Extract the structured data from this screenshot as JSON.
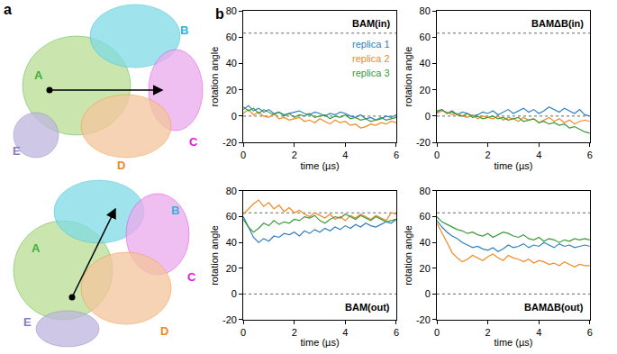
{
  "panel_a": {
    "label": "a",
    "structures": [
      {
        "labels": [
          {
            "text": "A",
            "color": "#3cb03c"
          },
          {
            "text": "B",
            "color": "#2fb5d8"
          },
          {
            "text": "C",
            "color": "#e020e0"
          },
          {
            "text": "D",
            "color": "#f08a24"
          },
          {
            "text": "E",
            "color": "#8a7ac0"
          }
        ]
      },
      {
        "labels": [
          {
            "text": "A",
            "color": "#3cb03c"
          },
          {
            "text": "B",
            "color": "#2fb5d8"
          },
          {
            "text": "C",
            "color": "#e020e0"
          },
          {
            "text": "D",
            "color": "#f08a24"
          },
          {
            "text": "E",
            "color": "#8a7ac0"
          }
        ]
      }
    ]
  },
  "panel_b_label": "b",
  "chart_data": [
    {
      "type": "line",
      "title": "BAM(in)",
      "x_label": "time (µs)",
      "y_label": "rotation angle",
      "xlim": [
        0,
        6
      ],
      "xticks": [
        0,
        2,
        4,
        6
      ],
      "ylim": [
        -20,
        80
      ],
      "yticks": [
        -20,
        0,
        20,
        40,
        60,
        80
      ],
      "hlines": [
        0,
        63
      ],
      "legend": "upper right",
      "line_style": "solid",
      "x": [
        0,
        0.2,
        0.4,
        0.6,
        0.8,
        1,
        1.2,
        1.4,
        1.6,
        1.8,
        2,
        2.2,
        2.4,
        2.6,
        2.8,
        3,
        3.2,
        3.4,
        3.6,
        3.8,
        4,
        4.2,
        4.4,
        4.6,
        4.8,
        5,
        5.2,
        5.4,
        5.6,
        5.8,
        6
      ],
      "series": [
        {
          "name": "replica 1",
          "color": "#2f7fc1",
          "values": [
            5,
            8,
            4,
            6,
            3,
            5,
            2,
            3,
            1,
            2,
            3,
            4,
            2,
            1,
            3,
            2,
            0,
            2,
            1,
            3,
            2,
            0,
            -1,
            1,
            -2,
            -1,
            -3,
            -2,
            0,
            -1,
            1
          ]
        },
        {
          "name": "replica 2",
          "color": "#f08a24",
          "values": [
            2,
            5,
            1,
            3,
            0,
            -1,
            2,
            -2,
            -1,
            -3,
            -2,
            -1,
            -4,
            -3,
            -5,
            -2,
            -4,
            -6,
            -3,
            -5,
            -4,
            -7,
            -6,
            -9,
            -8,
            -6,
            -7,
            -5,
            -6,
            -4,
            -5
          ]
        },
        {
          "name": "replica 3",
          "color": "#3a9a3a",
          "values": [
            7,
            4,
            6,
            2,
            5,
            3,
            1,
            3,
            0,
            2,
            -1,
            1,
            0,
            2,
            -1,
            0,
            1,
            -2,
            0,
            -1,
            1,
            -2,
            -1,
            -3,
            -2,
            -4,
            -3,
            -1,
            -3,
            -2,
            -1
          ]
        }
      ]
    },
    {
      "type": "line",
      "title": "BAMΔB(in)",
      "x_label": "time (µs)",
      "y_label": "rotation angle",
      "xlim": [
        0,
        6
      ],
      "xticks": [
        0,
        2,
        4,
        6
      ],
      "ylim": [
        -20,
        80
      ],
      "yticks": [
        -20,
        0,
        20,
        40,
        60,
        80
      ],
      "hlines": [
        0,
        63
      ],
      "line_style": "solid",
      "x": [
        0,
        0.2,
        0.4,
        0.6,
        0.8,
        1,
        1.2,
        1.4,
        1.6,
        1.8,
        2,
        2.2,
        2.4,
        2.6,
        2.8,
        3,
        3.2,
        3.4,
        3.6,
        3.8,
        4,
        4.2,
        4.4,
        4.6,
        4.8,
        5,
        5.2,
        5.4,
        5.6,
        5.8,
        6
      ],
      "series": [
        {
          "name": "replica 1",
          "color": "#2f7fc1",
          "values": [
            3,
            5,
            2,
            4,
            1,
            3,
            2,
            0,
            1,
            3,
            2,
            4,
            1,
            3,
            5,
            2,
            4,
            6,
            3,
            5,
            2,
            4,
            7,
            5,
            3,
            6,
            4,
            2,
            5,
            1,
            0
          ]
        },
        {
          "name": "replica 2",
          "color": "#f08a24",
          "values": [
            2,
            4,
            3,
            1,
            2,
            0,
            -1,
            1,
            -2,
            0,
            -1,
            -2,
            0,
            -3,
            -1,
            -2,
            -4,
            -1,
            -3,
            -2,
            -5,
            -3,
            -1,
            -4,
            -2,
            -5,
            -3,
            -6,
            -4,
            -3,
            -4
          ]
        },
        {
          "name": "replica 3",
          "color": "#3a9a3a",
          "values": [
            4,
            5,
            2,
            3,
            1,
            0,
            2,
            -1,
            0,
            -2,
            -1,
            0,
            -2,
            -1,
            -3,
            -2,
            -1,
            -4,
            -3,
            -2,
            -5,
            -4,
            -6,
            -5,
            -7,
            -6,
            -9,
            -8,
            -10,
            -12,
            -13
          ]
        }
      ]
    },
    {
      "type": "line",
      "title": "BAM(out)",
      "x_label": "time (µs)",
      "y_label": "rotation angle",
      "xlim": [
        0,
        6
      ],
      "xticks": [
        0,
        2,
        4,
        6
      ],
      "ylim": [
        -20,
        80
      ],
      "yticks": [
        -20,
        0,
        20,
        40,
        60,
        80
      ],
      "hlines": [
        0,
        63
      ],
      "line_style": "solid",
      "x": [
        0,
        0.2,
        0.4,
        0.6,
        0.8,
        1,
        1.2,
        1.4,
        1.6,
        1.8,
        2,
        2.2,
        2.4,
        2.6,
        2.8,
        3,
        3.2,
        3.4,
        3.6,
        3.8,
        4,
        4.2,
        4.4,
        4.6,
        4.8,
        5,
        5.2,
        5.4,
        5.6,
        5.8,
        6
      ],
      "series": [
        {
          "name": "replica 1",
          "color": "#2f7fc1",
          "values": [
            60,
            52,
            44,
            40,
            43,
            41,
            45,
            44,
            47,
            46,
            48,
            45,
            49,
            47,
            50,
            48,
            51,
            49,
            52,
            50,
            53,
            51,
            54,
            52,
            55,
            53,
            52,
            54,
            56,
            55,
            58
          ]
        },
        {
          "name": "replica 2",
          "color": "#f08a24",
          "values": [
            62,
            66,
            70,
            73,
            68,
            71,
            66,
            69,
            64,
            67,
            63,
            65,
            62,
            60,
            63,
            61,
            59,
            62,
            58,
            60,
            57,
            61,
            59,
            62,
            60,
            58,
            61,
            59,
            57,
            63,
            62
          ]
        },
        {
          "name": "replica 3",
          "color": "#3a9a3a",
          "values": [
            58,
            52,
            48,
            51,
            55,
            53,
            57,
            54,
            56,
            55,
            58,
            57,
            60,
            59,
            61,
            57,
            55,
            58,
            60,
            59,
            62,
            60,
            58,
            61,
            59,
            57,
            60,
            58,
            56,
            57,
            58
          ]
        }
      ]
    },
    {
      "type": "line",
      "title": "BAMΔB(out)",
      "x_label": "time (µs)",
      "y_label": "rotation angle",
      "xlim": [
        0,
        6
      ],
      "xticks": [
        0,
        2,
        4,
        6
      ],
      "ylim": [
        -20,
        80
      ],
      "yticks": [
        -20,
        0,
        20,
        40,
        60,
        80
      ],
      "hlines": [
        0,
        63
      ],
      "line_style": "solid",
      "x": [
        0,
        0.2,
        0.4,
        0.6,
        0.8,
        1,
        1.2,
        1.4,
        1.6,
        1.8,
        2,
        2.2,
        2.4,
        2.6,
        2.8,
        3,
        3.2,
        3.4,
        3.6,
        3.8,
        4,
        4.2,
        4.4,
        4.6,
        4.8,
        5,
        5.2,
        5.4,
        5.6,
        5.8,
        6
      ],
      "series": [
        {
          "name": "replica 1",
          "color": "#2f7fc1",
          "values": [
            57,
            52,
            48,
            45,
            43,
            40,
            38,
            36,
            37,
            35,
            34,
            36,
            33,
            35,
            38,
            36,
            37,
            39,
            36,
            38,
            37,
            40,
            38,
            36,
            39,
            37,
            38,
            36,
            37,
            38,
            37
          ]
        },
        {
          "name": "replica 2",
          "color": "#f08a24",
          "values": [
            55,
            48,
            40,
            32,
            28,
            25,
            27,
            30,
            28,
            26,
            29,
            31,
            28,
            26,
            30,
            28,
            27,
            25,
            27,
            24,
            26,
            25,
            23,
            24,
            22,
            25,
            23,
            21,
            23,
            22,
            22
          ]
        },
        {
          "name": "replica 3",
          "color": "#3a9a3a",
          "values": [
            60,
            56,
            54,
            52,
            50,
            49,
            47,
            48,
            46,
            45,
            47,
            44,
            46,
            48,
            47,
            45,
            44,
            46,
            43,
            42,
            44,
            41,
            43,
            42,
            40,
            42,
            41,
            43,
            42,
            43,
            42
          ]
        }
      ]
    }
  ]
}
